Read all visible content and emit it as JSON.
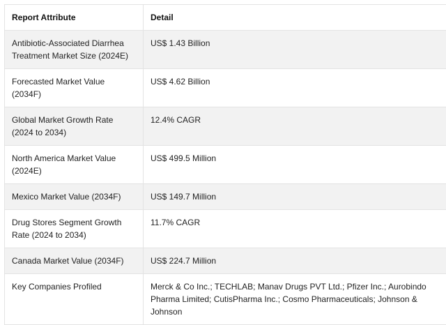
{
  "table": {
    "headers": [
      "Report Attribute",
      "Detail"
    ],
    "rows": [
      [
        "Antibiotic-Associated Diarrhea Treatment Market Size (2024E)",
        "US$ 1.43 Billion"
      ],
      [
        "Forecasted Market Value (2034F)",
        "US$ 4.62 Billion"
      ],
      [
        "Global Market Growth Rate (2024 to 2034)",
        "12.4% CAGR"
      ],
      [
        "North America Market Value (2024E)",
        "US$ 499.5 Million"
      ],
      [
        "Mexico Market Value (2034F)",
        "US$ 149.7 Million"
      ],
      [
        "Drug Stores Segment Growth Rate (2024 to 2034)",
        "11.7% CAGR"
      ],
      [
        "Canada Market Value (2034F)",
        "US$ 224.7 Million"
      ],
      [
        "Key Companies Profiled",
        "Merck & Co Inc.; TECHLAB; Manav Drugs PVT Ltd.; Pfizer Inc.; Aurobindo Pharma Limited; CutisPharma Inc.; Cosmo Pharmaceuticals; Johnson & Johnson"
      ]
    ]
  }
}
